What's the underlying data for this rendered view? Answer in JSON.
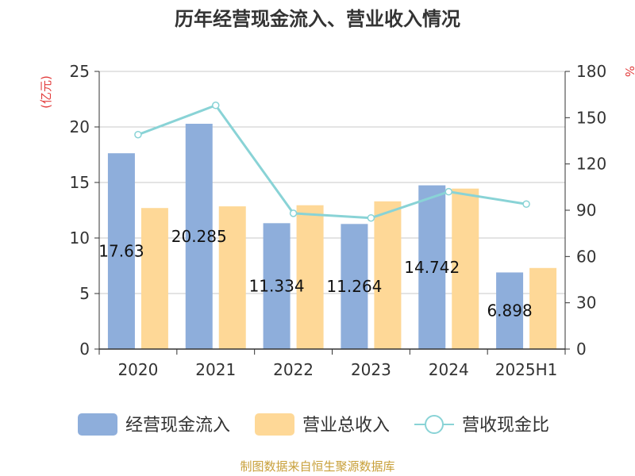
{
  "chart_data": {
    "type": "bar",
    "title": "历年经营现金流入、营业收入情况",
    "categories": [
      "2020",
      "2021",
      "2022",
      "2023",
      "2024",
      "2025H1"
    ],
    "left_axis": {
      "unit_label": "(亿元)",
      "ylim": [
        0,
        25
      ],
      "ticks": [
        0,
        5,
        10,
        15,
        20,
        25
      ]
    },
    "right_axis": {
      "unit_label": "%",
      "ylim": [
        0,
        180
      ],
      "ticks": [
        0,
        30,
        60,
        90,
        120,
        150,
        180
      ]
    },
    "series": [
      {
        "name": "经营现金流入",
        "type": "bar",
        "axis": "left",
        "color": "#8eaedb",
        "values": [
          17.63,
          20.285,
          11.334,
          11.264,
          14.742,
          6.898
        ],
        "labels": [
          "17.63",
          "20.285",
          "11.334",
          "11.264",
          "14.742",
          "6.898"
        ]
      },
      {
        "name": "营业总收入",
        "type": "bar",
        "axis": "left",
        "color": "#fed897",
        "values": [
          12.7,
          12.85,
          12.95,
          13.3,
          14.45,
          7.3
        ]
      },
      {
        "name": "营收现金比",
        "type": "line",
        "axis": "right",
        "color": "#89d3d6",
        "values": [
          139,
          158,
          88,
          85,
          102,
          94
        ]
      }
    ],
    "grid": true,
    "legend_position": "bottom"
  },
  "footer": {
    "source": "制图数据来自恒生聚源数据库"
  },
  "colors": {
    "left_unit": "#e23b3b",
    "right_unit": "#e23b3b",
    "source": "#c8a03a"
  }
}
